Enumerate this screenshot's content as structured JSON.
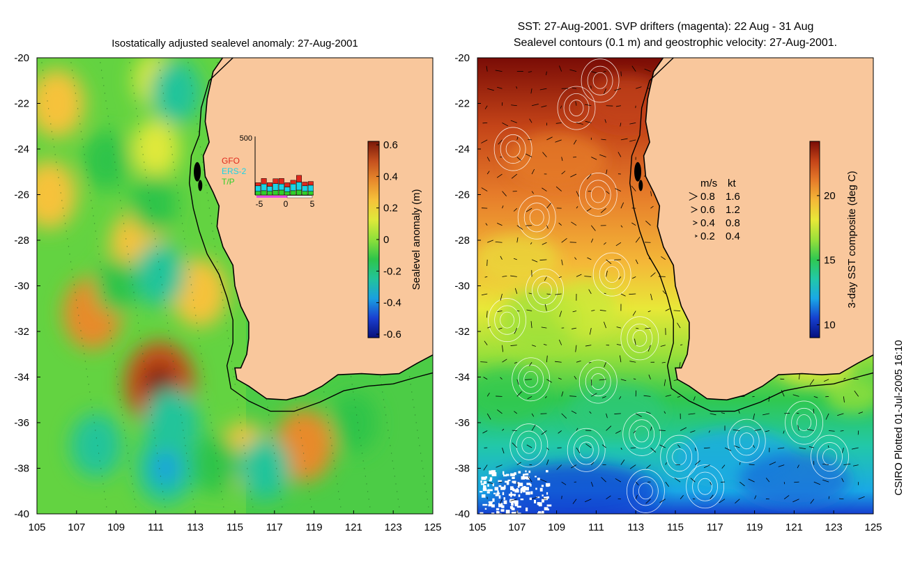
{
  "chart_data": [
    {
      "type": "heatmap",
      "title": "Isostatically adjusted sealevel anomaly: 27-Aug-2001",
      "x_ticks": [
        "105",
        "107",
        "109",
        "111",
        "113",
        "115",
        "117",
        "119",
        "121",
        "123",
        "125"
      ],
      "y_ticks": [
        "-20",
        "-22",
        "-24",
        "-26",
        "-28",
        "-30",
        "-32",
        "-34",
        "-36",
        "-38",
        "-40"
      ],
      "xlim": [
        105,
        125
      ],
      "ylim": [
        -40,
        -20
      ],
      "colorbar": {
        "label": "Sealevel anomaly (m)",
        "ticks": [
          "0.6",
          "0.4",
          "0.2",
          "0",
          "-0.2",
          "-0.4",
          "-0.6"
        ],
        "range": [
          -0.6,
          0.6
        ]
      },
      "anomalies": [
        {
          "lon": 111.2,
          "lat": -34.3,
          "value": 0.45
        },
        {
          "lon": 107.8,
          "lat": -31.2,
          "value": 0.3
        },
        {
          "lon": 113.2,
          "lat": -30.3,
          "value": 0.25
        },
        {
          "lon": 110.1,
          "lat": -28.2,
          "value": 0.25
        },
        {
          "lon": 106.0,
          "lat": -22.0,
          "value": 0.25
        },
        {
          "lon": 105.6,
          "lat": -26.0,
          "value": 0.25
        },
        {
          "lon": 118.5,
          "lat": -37.0,
          "value": 0.3
        },
        {
          "lon": 115.5,
          "lat": -37.4,
          "value": 0.2
        },
        {
          "lon": 111.0,
          "lat": -21.0,
          "value": 0.1
        },
        {
          "lon": 111.0,
          "lat": -24.0,
          "value": 0.15
        },
        {
          "lon": 111.2,
          "lat": -29.5,
          "value": -0.2
        },
        {
          "lon": 111.8,
          "lat": -36.0,
          "value": -0.25
        },
        {
          "lon": 111.5,
          "lat": -38.0,
          "value": -0.3
        },
        {
          "lon": 108.0,
          "lat": -37.0,
          "value": -0.2
        },
        {
          "lon": 112.0,
          "lat": -21.5,
          "value": -0.2
        },
        {
          "lon": 108.5,
          "lat": -24.5,
          "value": -0.15
        },
        {
          "lon": 110.9,
          "lat": -26.4,
          "value": -0.15
        },
        {
          "lon": 109.0,
          "lat": -30.0,
          "value": -0.1
        },
        {
          "lon": 116.5,
          "lat": -38.0,
          "value": -0.2
        },
        {
          "lon": 121.0,
          "lat": -36.0,
          "value": -0.15
        },
        {
          "lon": 114.0,
          "lat": -37.8,
          "value": -0.15
        }
      ],
      "inset": {
        "y_label": "500",
        "x_ticks": [
          "-5",
          "0",
          "5"
        ],
        "legend": [
          {
            "label": "GFO",
            "color": "#e0281c"
          },
          {
            "label": "ERS-2",
            "color": "#19d4e6"
          },
          {
            "label": "T/P",
            "color": "#2fd02a"
          }
        ],
        "bars": [
          {
            "tp": 60,
            "ers": 90,
            "gfo": 50
          },
          {
            "tp": 70,
            "ers": 110,
            "gfo": 90
          },
          {
            "tp": 60,
            "ers": 80,
            "gfo": 60
          },
          {
            "tp": 75,
            "ers": 110,
            "gfo": 80
          },
          {
            "tp": 80,
            "ers": 100,
            "gfo": 90
          },
          {
            "tp": 55,
            "ers": 75,
            "gfo": 70
          },
          {
            "tp": 70,
            "ers": 110,
            "gfo": 60
          },
          {
            "tp": 80,
            "ers": 130,
            "gfo": 110
          },
          {
            "tp": 60,
            "ers": 90,
            "gfo": 60
          },
          {
            "tp": 60,
            "ers": 100,
            "gfo": 60
          }
        ]
      }
    },
    {
      "type": "heatmap",
      "title_line1": "SST: 27-Aug-2001. SVP drifters (magenta): 22 Aug - 31 Aug",
      "title_line2": "Sealevel contours (0.1 m) and geostrophic velocity: 27-Aug-2001.",
      "x_ticks": [
        "105",
        "107",
        "109",
        "111",
        "113",
        "115",
        "117",
        "119",
        "121",
        "123",
        "125"
      ],
      "y_ticks": [
        "-20",
        "-22",
        "-24",
        "-26",
        "-28",
        "-30",
        "-32",
        "-34",
        "-36",
        "-38",
        "-40"
      ],
      "xlim": [
        105,
        125
      ],
      "ylim": [
        -40,
        -20
      ],
      "colorbar": {
        "label": "3-day SST composite (deg C)",
        "ticks": [
          "20",
          "15",
          "10"
        ],
        "range": [
          10,
          24
        ]
      },
      "sst_by_latitude": [
        {
          "lat": -20,
          "sst": 24
        },
        {
          "lat": -23,
          "sst": 22.5
        },
        {
          "lat": -26,
          "sst": 21
        },
        {
          "lat": -29,
          "sst": 19.5
        },
        {
          "lat": -31,
          "sst": 18.5
        },
        {
          "lat": -33,
          "sst": 17
        },
        {
          "lat": -35,
          "sst": 15.5
        },
        {
          "lat": -37,
          "sst": 14
        },
        {
          "lat": -39,
          "sst": 12.5
        },
        {
          "lat": -40,
          "sst": 11.5
        }
      ],
      "speed_legend": {
        "headers": [
          "m/s",
          "kt"
        ],
        "rows": [
          {
            "ms": "0.8",
            "kt": "1.6"
          },
          {
            "ms": "0.6",
            "kt": "1.2"
          },
          {
            "ms": "0.4",
            "kt": "0.8"
          },
          {
            "ms": "0.2",
            "kt": "0.4"
          }
        ]
      }
    }
  ],
  "colors": {
    "land": "#f9c79c",
    "coast": "#000000",
    "sla_scale": [
      "#08107a",
      "#1a3fd0",
      "#1aa0e0",
      "#22c49a",
      "#2ec44a",
      "#8ee03a",
      "#dfe83a",
      "#f6c23a",
      "#e88a2c",
      "#c4501e",
      "#7a1808"
    ],
    "sst_scale": [
      "#06107e",
      "#1640d0",
      "#1aa8e6",
      "#22c8a8",
      "#30c850",
      "#9ae03a",
      "#e8e838",
      "#f4b838",
      "#e67c2a",
      "#c44418",
      "#7a0c06"
    ]
  },
  "footer": {
    "credit": "CSIRO Plotted 01-Jul-2005 16:10"
  }
}
